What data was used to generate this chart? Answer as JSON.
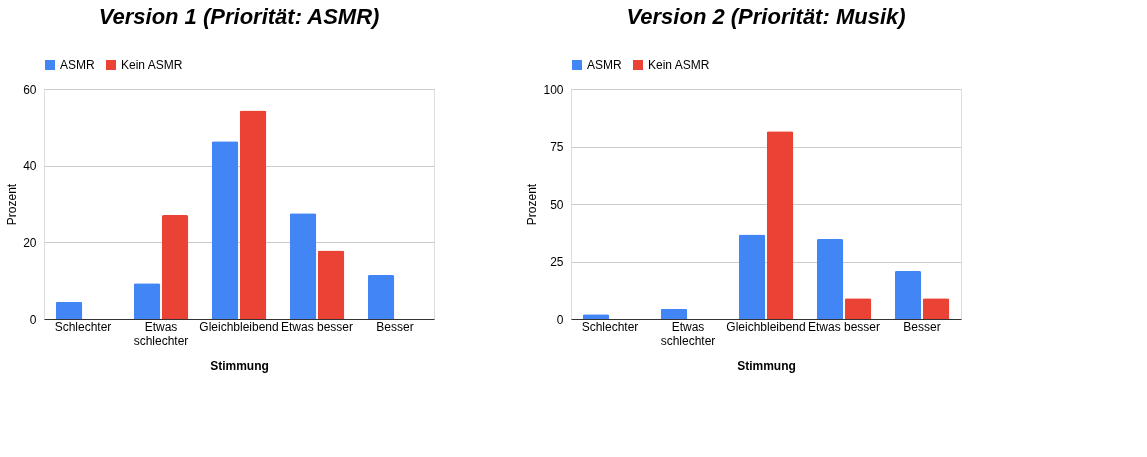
{
  "chart_data": [
    {
      "type": "bar",
      "title": "Version 1 (Priorität: ASMR)",
      "xlabel": "Stimmung",
      "ylabel": "Prozent",
      "categories": [
        "Schlechter",
        "Etwas schlechter",
        "Gleichbleibend",
        "Etwas besser",
        "Besser"
      ],
      "series": [
        {
          "name": "ASMR",
          "color": "#4285f4",
          "values": [
            4.5,
            9.3,
            46.4,
            27.6,
            11.5
          ]
        },
        {
          "name": "Kein ASMR",
          "color": "#ea4335",
          "values": [
            0,
            27.1,
            54.4,
            17.9,
            0
          ]
        }
      ],
      "ylim": [
        0,
        60
      ],
      "yticks": [
        0,
        20,
        40,
        60
      ],
      "grid": "y",
      "legend": "top"
    },
    {
      "type": "bar",
      "title": "Version 2 (Priorität: Musik)",
      "xlabel": "Stimmung",
      "ylabel": "Prozent",
      "categories": [
        "Schlechter",
        "Etwas schlechter",
        "Gleichbleibend",
        "Etwas besser",
        "Besser"
      ],
      "series": [
        {
          "name": "ASMR",
          "color": "#4285f4",
          "values": [
            2.1,
            4.5,
            36.7,
            34.8,
            20.9
          ]
        },
        {
          "name": "Kein ASMR",
          "color": "#ea4335",
          "values": [
            0,
            0,
            81.6,
            9.0,
            9.0
          ]
        }
      ],
      "ylim": [
        0,
        100
      ],
      "yticks": [
        0,
        25,
        50,
        75,
        100
      ],
      "grid": "y",
      "legend": "top"
    }
  ]
}
